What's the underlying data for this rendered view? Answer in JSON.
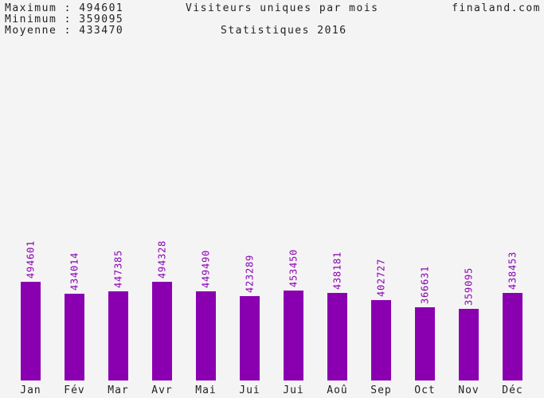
{
  "header": {
    "maximum": "Maximum : 494601",
    "minimum": "Minimum : 359095",
    "moyenne": "Moyenne : 433470",
    "title": "Visiteurs uniques par mois",
    "subtitle": "Statistiques 2016",
    "site": "finaland.com"
  },
  "colors": {
    "bar": "#8a00b0",
    "value_label": "#8a00b0",
    "text": "#222222",
    "background": "#f4f4f4"
  },
  "chart_data": {
    "type": "bar",
    "title": "Visiteurs uniques par mois",
    "subtitle": "Statistiques 2016",
    "categories": [
      "Jan",
      "Fév",
      "Mar",
      "Avr",
      "Mai",
      "Jui",
      "Jui",
      "Aoû",
      "Sep",
      "Oct",
      "Nov",
      "Déc"
    ],
    "values": [
      494601,
      434014,
      447385,
      494328,
      449490,
      423289,
      453450,
      438181,
      402727,
      366631,
      359095,
      438453
    ],
    "value_labels": [
      "494601",
      "434014",
      "447385",
      "494328",
      "449490",
      "423289",
      "453450",
      "438181",
      "402727",
      "366631",
      "359095",
      "438453"
    ],
    "ylim": [
      0,
      1000000
    ],
    "grid": false,
    "legend": "none"
  }
}
